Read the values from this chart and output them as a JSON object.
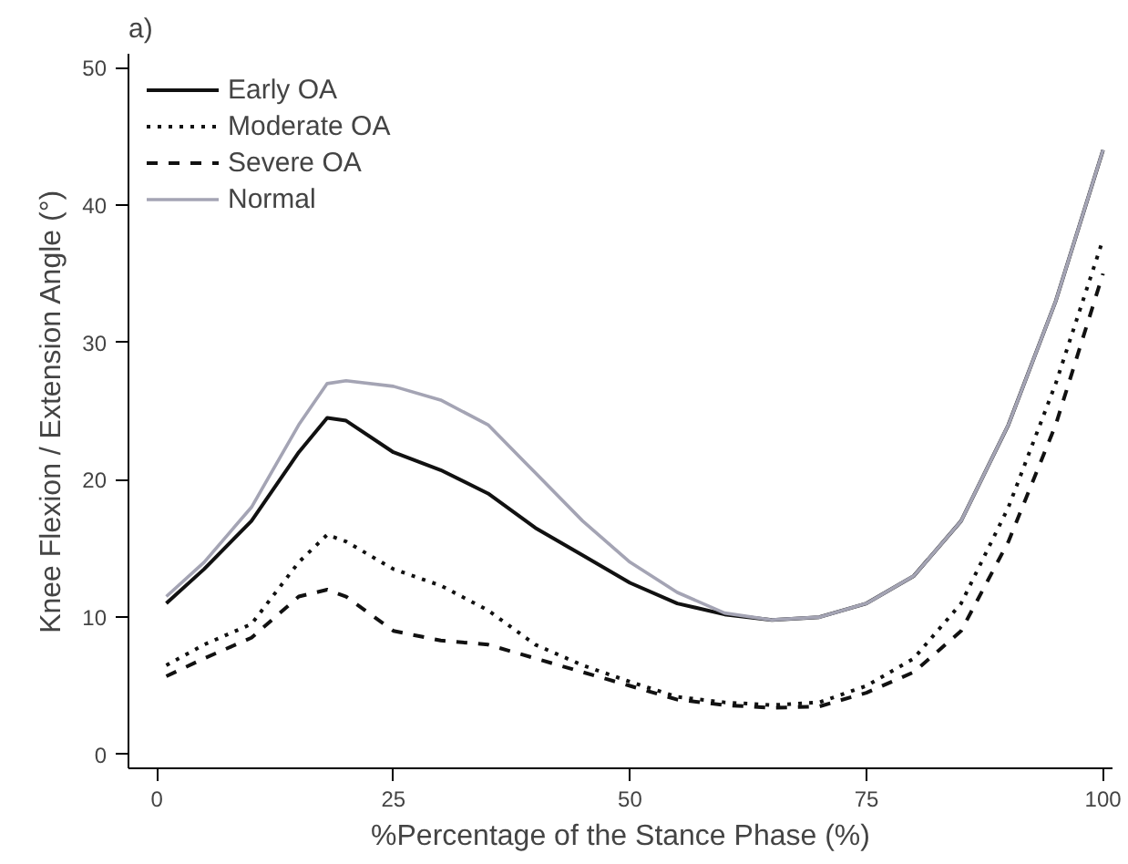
{
  "chart_data": {
    "type": "line",
    "title": "a)",
    "xlabel": "%Percentage of the Stance Phase (%)",
    "ylabel": "Knee Flexion / Extension Angle (°)",
    "x": [
      1,
      5,
      10,
      15,
      18,
      20,
      25,
      30,
      35,
      40,
      45,
      50,
      55,
      60,
      65,
      70,
      75,
      80,
      85,
      90,
      95,
      100
    ],
    "series": [
      {
        "name": "Early OA",
        "color": "#111111",
        "line_style": "solid",
        "values": [
          11,
          13.5,
          17,
          22,
          24.5,
          24.3,
          22,
          20.7,
          19,
          16.5,
          14.5,
          12.5,
          11,
          10.2,
          9.8,
          10,
          11,
          13,
          17,
          24,
          33,
          44
        ]
      },
      {
        "name": "Moderate OA",
        "color": "#111111",
        "line_style": "dotted",
        "values": [
          6.5,
          8,
          9.5,
          14,
          16,
          15.5,
          13.5,
          12.3,
          10.5,
          8,
          6.5,
          5.3,
          4.2,
          3.8,
          3.6,
          3.8,
          5,
          7,
          11,
          18,
          27,
          37.5
        ]
      },
      {
        "name": "Severe OA",
        "color": "#111111",
        "line_style": "dashed",
        "values": [
          5.7,
          7,
          8.5,
          11.5,
          12,
          11.5,
          9,
          8.3,
          8,
          7,
          6,
          5,
          4,
          3.6,
          3.4,
          3.5,
          4.5,
          6,
          9,
          15.5,
          24,
          35
        ]
      },
      {
        "name": "Normal",
        "color": "#a4a4b4",
        "line_style": "solid",
        "values": [
          11.5,
          14,
          18,
          24,
          27,
          27.2,
          26.8,
          25.8,
          24,
          20.5,
          17,
          14,
          11.8,
          10.3,
          9.8,
          10,
          11,
          13,
          17,
          24,
          33,
          44
        ]
      }
    ],
    "xlim": [
      -3,
      101
    ],
    "ylim": [
      -1,
      51
    ],
    "xticks": [
      0,
      25,
      50,
      75,
      100
    ],
    "yticks": [
      0,
      10,
      20,
      30,
      40,
      50
    ],
    "grid": false,
    "legend": "top left"
  }
}
